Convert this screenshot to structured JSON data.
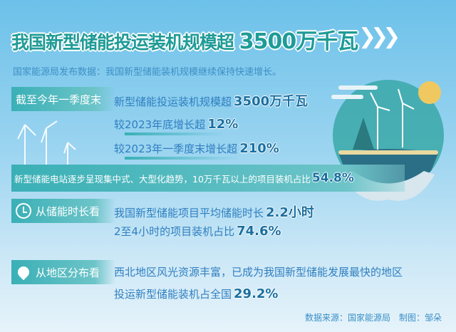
{
  "title": {
    "text": "我国新型储能投运装机规模超",
    "value": "3500万千瓦"
  },
  "subtitle": "国家能源局发布数据：我国新型储能装机规模继续保持快速增长。",
  "section1": {
    "label": "截至今年一季度末",
    "lines": [
      {
        "text": "新型储能投运装机规模超",
        "value": "3500万千瓦"
      },
      {
        "text": "较2023年底增长超",
        "value": "12%"
      },
      {
        "text": "较2023年一季度末增长超",
        "value": "210%"
      }
    ]
  },
  "banner": {
    "text": "新型储能电站逐步呈现集中式、大型化趋势，10万千瓦以上的项目装机占比",
    "value": "54.8%"
  },
  "section2": {
    "label": "从储能时长看",
    "icon": "clock-icon",
    "lines": [
      {
        "text": "我国新型储能项目平均储能时长",
        "value": "2.2小时"
      },
      {
        "text": "2至4小时的项目装机占比",
        "value": "74.6%"
      }
    ]
  },
  "section3": {
    "label": "从地区分布看",
    "icon": "location-pin-icon",
    "lines": [
      {
        "text": "西北地区风光资源丰富，已成为我国新型储能发展最快的地区",
        "value": ""
      },
      {
        "text": "投运新型储能装机占全国",
        "value": "29.2%"
      }
    ]
  },
  "footer": "数据来源：国家能源局　制图：邹朵",
  "colors": {
    "teal": "#3ab0b6",
    "blue_text": "#2f7fc0",
    "value": "#1a6fa0"
  }
}
